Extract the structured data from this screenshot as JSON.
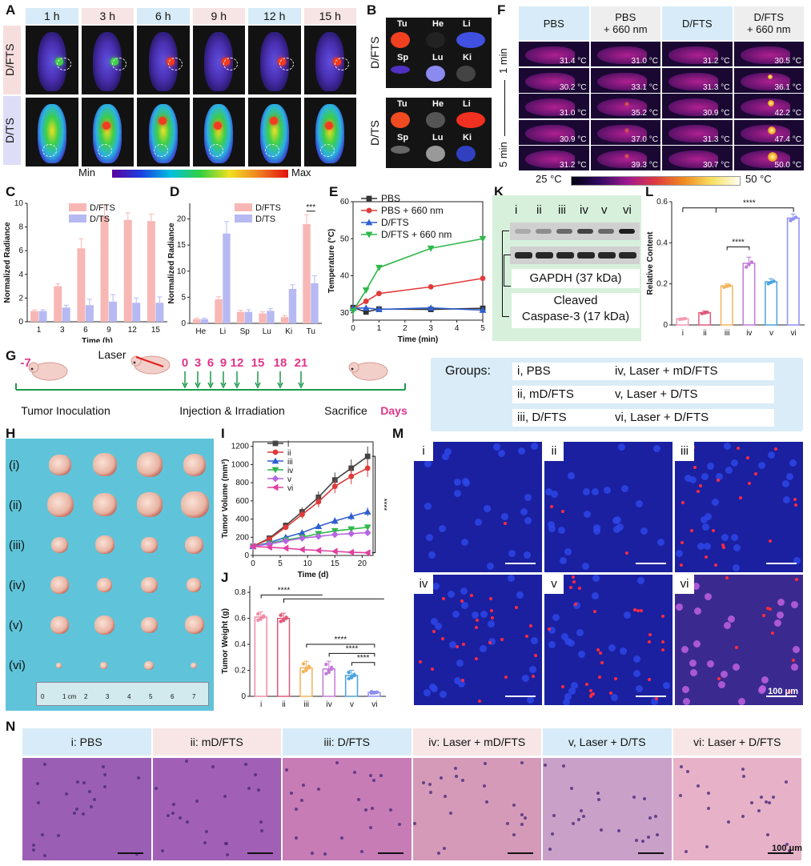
{
  "labels": {
    "A": "A",
    "B": "B",
    "C": "C",
    "D": "D",
    "E": "E",
    "F": "F",
    "G": "G",
    "H": "H",
    "I": "I",
    "J": "J",
    "K": "K",
    "L": "L",
    "M": "M",
    "N": "N"
  },
  "panelA": {
    "times": [
      "1 h",
      "3 h",
      "6 h",
      "9 h",
      "12 h",
      "15 h"
    ],
    "rows": [
      "D/FTS",
      "D/TS"
    ],
    "scale_min": "Min",
    "scale_max": "Max"
  },
  "panelB": {
    "rows": [
      "D/FTS",
      "D/TS"
    ],
    "organs": [
      "Tu",
      "He",
      "Li",
      "Sp",
      "Lu",
      "Ki"
    ]
  },
  "panelF": {
    "cols": [
      "PBS",
      "PBS\n+ 660 nm",
      "D/FTS",
      "D/FTS\n+ 660 nm"
    ],
    "time_top": "1 min",
    "time_bottom": "5 min",
    "temps": [
      [
        "31.4 °C",
        "31.0 °C",
        "31.2 °C",
        "30.5 °C"
      ],
      [
        "30.2 °C",
        "33.1 °C",
        "31.3 °C",
        "36.1 °C"
      ],
      [
        "31.0 °C",
        "35.2 °C",
        "30.9 °C",
        "42.2 °C"
      ],
      [
        "30.9 °C",
        "37.0 °C",
        "31.3 °C",
        "47.4 °C"
      ],
      [
        "31.2 °C",
        "39.3 °C",
        "30.7 °C",
        "50.0 °C"
      ]
    ],
    "scale_min": "25 °C",
    "scale_max": "50 °C"
  },
  "panelK": {
    "lanes": [
      "i",
      "ii",
      "iii",
      "iv",
      "v",
      "vi"
    ],
    "band1": "GAPDH (37 kDa)",
    "band2": "Cleaved\nCaspase-3 (17 kDa)"
  },
  "panelG": {
    "days": [
      "-7",
      "0",
      "3",
      "6",
      "9",
      "12",
      "15",
      "18",
      "21"
    ],
    "laser": "Laser",
    "tumor": "Tumor Inoculation",
    "injection": "Injection & Irradiation",
    "sacrifice": "Sacrifice",
    "days_label": "Days"
  },
  "groups": {
    "title": "Groups:",
    "items": [
      "i, PBS",
      "ii, mD/FTS",
      "iii, D/FTS",
      "iv, Laser + mD/FTS",
      "v, Laser + D/TS",
      "vi, Laser + D/FTS"
    ]
  },
  "panelH": {
    "rows": [
      "(i)",
      "(ii)",
      "(iii)",
      "(iv)",
      "(v)",
      "(vi)"
    ]
  },
  "panelM": {
    "tiles": [
      "i",
      "ii",
      "iii",
      "iv",
      "v",
      "vi"
    ],
    "scale": "100 μm"
  },
  "panelN": {
    "headers": [
      "i: PBS",
      "ii: mD/FTS",
      "iii: D/FTS",
      "iv: Laser + mD/FTS",
      "v, Laser + D/TS",
      "vi: Laser + D/FTS"
    ],
    "scale": "100 μm"
  },
  "chart_data": [
    {
      "id": "C",
      "type": "bar",
      "categories": [
        "1",
        "3",
        "6",
        "9",
        "12",
        "15"
      ],
      "xlabel": "Time (h)",
      "ylabel": "Normalized Radiance",
      "ylim": [
        0,
        10
      ],
      "yticks": [
        0,
        2,
        4,
        6,
        8,
        10
      ],
      "series": [
        {
          "name": "D/FTS",
          "color": "#f7b7b5",
          "values": [
            0.9,
            3.0,
            6.2,
            8.9,
            8.6,
            8.5
          ],
          "err": [
            0.1,
            0.2,
            0.8,
            1.0,
            0.6,
            0.6
          ]
        },
        {
          "name": "D/TS",
          "color": "#b7b9f2",
          "values": [
            0.9,
            1.2,
            1.4,
            1.7,
            1.6,
            1.6
          ],
          "err": [
            0.1,
            0.2,
            0.5,
            0.6,
            0.4,
            0.5
          ]
        }
      ]
    },
    {
      "id": "D",
      "type": "bar",
      "categories": [
        "He",
        "Li",
        "Sp",
        "Lu",
        "Ki",
        "Tu"
      ],
      "ylabel": "Normalized Radiance",
      "ylim": [
        0,
        23
      ],
      "yticks": [
        0,
        5,
        10,
        15,
        20
      ],
      "sig": "***",
      "series": [
        {
          "name": "D/FTS",
          "color": "#f7b7b5",
          "values": [
            0.8,
            4.6,
            2.2,
            1.9,
            1.2,
            19.0
          ],
          "err": [
            0.2,
            0.5,
            0.3,
            0.3,
            0.3,
            1.8
          ]
        },
        {
          "name": "D/TS",
          "color": "#b7b9f2",
          "values": [
            0.8,
            17.2,
            2.2,
            2.4,
            6.6,
            7.7
          ],
          "err": [
            0.2,
            2.3,
            0.4,
            0.4,
            0.8,
            1.4
          ]
        }
      ]
    },
    {
      "id": "E",
      "type": "line",
      "x": [
        0,
        0.5,
        1,
        3,
        5
      ],
      "xlabel": "Time (min)",
      "ylabel": "Temperature (°C)",
      "xlim": [
        0,
        5
      ],
      "ylim": [
        28,
        60
      ],
      "yticks": [
        30,
        40,
        50,
        60
      ],
      "xticks": [
        0,
        1,
        2,
        3,
        4,
        5
      ],
      "series": [
        {
          "name": "PBS",
          "color": "#333333",
          "marker": "square",
          "values": [
            31.4,
            30.2,
            31.0,
            30.9,
            31.2
          ]
        },
        {
          "name": "PBS + 660 nm",
          "color": "#e03a3a",
          "marker": "circle",
          "values": [
            31.0,
            33.1,
            35.2,
            37.0,
            39.3
          ]
        },
        {
          "name": "D/FTS",
          "color": "#2f5fd0",
          "marker": "triangle-up",
          "values": [
            31.2,
            31.3,
            30.9,
            31.3,
            30.7
          ]
        },
        {
          "name": "D/FTS + 660 nm",
          "color": "#2fb84a",
          "marker": "triangle-down",
          "values": [
            30.5,
            36.1,
            42.2,
            47.4,
            50.0
          ]
        }
      ]
    },
    {
      "id": "L",
      "type": "bar",
      "categories": [
        "i",
        "ii",
        "iii",
        "iv",
        "v",
        "vi"
      ],
      "ylabel": "Relative Content",
      "ylim": [
        0,
        0.6
      ],
      "yticks": [
        0.0,
        0.2,
        0.4,
        0.6
      ],
      "sig": [
        "****",
        "****"
      ],
      "series": [
        {
          "values": [
            0.03,
            0.06,
            0.19,
            0.3,
            0.21,
            0.52
          ],
          "err": [
            0.005,
            0.008,
            0.01,
            0.03,
            0.015,
            0.02
          ],
          "colors": [
            "#f49ab0",
            "#e05a7a",
            "#f2b35a",
            "#c27ad6",
            "#4aa3df",
            "#8f8ff0"
          ]
        }
      ]
    },
    {
      "id": "I",
      "type": "line",
      "x": [
        0,
        3,
        6,
        9,
        12,
        15,
        18,
        21
      ],
      "xlabel": "Time (d)",
      "ylabel": "Tumor Volume (mm³)",
      "xlim": [
        0,
        22
      ],
      "ylim": [
        0,
        1250
      ],
      "yticks": [
        0,
        200,
        400,
        600,
        800,
        1000,
        1200
      ],
      "xticks": [
        0,
        5,
        10,
        15,
        20
      ],
      "sig": "****",
      "series": [
        {
          "name": "i",
          "color": "#444444",
          "marker": "square",
          "values": [
            100,
            190,
            330,
            480,
            640,
            830,
            960,
            1090
          ]
        },
        {
          "name": "ii",
          "color": "#e03a3a",
          "marker": "circle",
          "values": [
            100,
            180,
            310,
            450,
            590,
            760,
            870,
            960
          ]
        },
        {
          "name": "iii",
          "color": "#2f5fd0",
          "marker": "triangle-up",
          "values": [
            100,
            140,
            200,
            250,
            320,
            380,
            430,
            480
          ]
        },
        {
          "name": "iv",
          "color": "#2fb84a",
          "marker": "triangle-down",
          "values": [
            100,
            130,
            170,
            200,
            240,
            270,
            290,
            310
          ]
        },
        {
          "name": "v",
          "color": "#b566e0",
          "marker": "diamond",
          "values": [
            100,
            125,
            160,
            190,
            210,
            230,
            240,
            250
          ]
        },
        {
          "name": "vi",
          "color": "#e040a0",
          "marker": "triangle-left",
          "values": [
            100,
            90,
            80,
            65,
            55,
            45,
            35,
            30
          ]
        }
      ]
    },
    {
      "id": "J",
      "type": "bar",
      "categories": [
        "i",
        "ii",
        "iii",
        "iv",
        "v",
        "vi"
      ],
      "ylabel": "Tumor Weight (g)",
      "ylim": [
        0,
        0.85
      ],
      "yticks": [
        0.0,
        0.2,
        0.4,
        0.6,
        0.8
      ],
      "sig": [
        "****",
        "****",
        "****",
        "****"
      ],
      "series": [
        {
          "values": [
            0.61,
            0.6,
            0.22,
            0.21,
            0.16,
            0.03
          ],
          "err": [
            0.04,
            0.04,
            0.05,
            0.06,
            0.04,
            0.01
          ],
          "colors": [
            "#f08aa5",
            "#e05a7a",
            "#f2b35a",
            "#c27ad6",
            "#4aa3df",
            "#8f8ff0"
          ]
        }
      ]
    }
  ]
}
